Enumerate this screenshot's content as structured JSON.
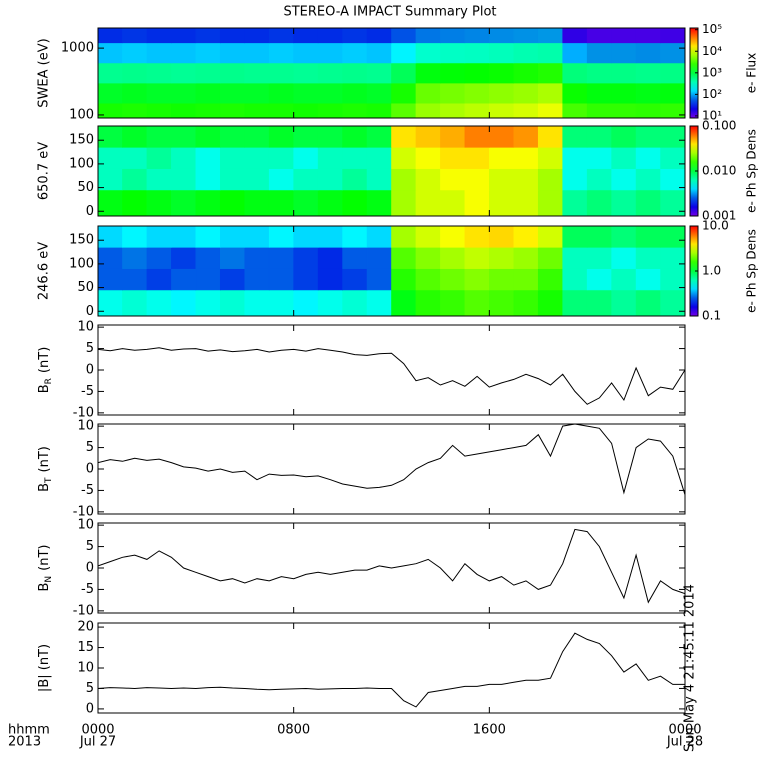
{
  "title": "STEREO-A IMPACT Summary Plot",
  "timestamp": "Sun May  4 21:45:11 2014",
  "x_axis": {
    "xlim": [
      0,
      24
    ],
    "row_labels": [
      "hhmm",
      "2013"
    ],
    "xticks": [
      {
        "value": 0,
        "label": "0000"
      },
      {
        "value": 8,
        "label": "0800"
      },
      {
        "value": 16,
        "label": "1600"
      },
      {
        "value": 24,
        "label": "0000"
      }
    ],
    "date_labels": [
      {
        "value": 0,
        "label": "Jul 27"
      },
      {
        "value": 24,
        "label": "Jul 28"
      }
    ]
  },
  "chart_data": [
    {
      "type": "heatmap",
      "ylabel": "SWEA (eV)",
      "ylog": true,
      "ylim": [
        90,
        2000
      ],
      "yticks": [
        100,
        1000
      ],
      "xbins": [
        0,
        1,
        2,
        3,
        4,
        5,
        6,
        7,
        8,
        9,
        10,
        11,
        12,
        13,
        14,
        15,
        16,
        17,
        18,
        19,
        20,
        21,
        22,
        23,
        24
      ],
      "ybins": [
        90,
        150,
        300,
        600,
        1200,
        2000
      ],
      "z": [
        [
          2000,
          2100,
          2000,
          1900,
          2000,
          2100,
          2000,
          2000,
          1900,
          2000,
          2100,
          2000,
          3500,
          6000,
          7000,
          8000,
          9000,
          10000,
          12000,
          3000,
          2500,
          2500,
          2400,
          2500
        ],
        [
          1200,
          1300,
          1200,
          1200,
          1300,
          1200,
          1200,
          1300,
          1200,
          1200,
          1300,
          1200,
          2000,
          4000,
          4500,
          5000,
          5500,
          6000,
          7000,
          1800,
          1500,
          1500,
          1400,
          1500
        ],
        [
          500,
          520,
          500,
          480,
          500,
          520,
          500,
          500,
          480,
          500,
          520,
          500,
          800,
          1500,
          1600,
          1700,
          1800,
          2000,
          2200,
          600,
          550,
          550,
          520,
          550
        ],
        [
          120,
          130,
          120,
          120,
          130,
          120,
          120,
          130,
          120,
          120,
          130,
          120,
          180,
          300,
          320,
          330,
          350,
          380,
          400,
          100,
          90,
          90,
          85,
          90
        ],
        [
          35,
          38,
          35,
          35,
          38,
          35,
          35,
          38,
          35,
          35,
          38,
          35,
          50,
          70,
          75,
          80,
          85,
          90,
          95,
          15,
          12,
          12,
          12,
          13
        ]
      ],
      "zlog": true,
      "zlim": [
        8,
        120000
      ],
      "zticks": [
        {
          "value": 10,
          "label": "10¹"
        },
        {
          "value": 100,
          "label": "10²"
        },
        {
          "value": 1000,
          "label": "10³"
        },
        {
          "value": 10000,
          "label": "10⁴"
        },
        {
          "value": 100000,
          "label": "10⁵"
        }
      ],
      "zlabel": "e- Flux"
    },
    {
      "type": "heatmap",
      "ylabel": "650.7 eV",
      "ylog": false,
      "ylim": [
        -10,
        180
      ],
      "yticks": [
        0,
        50,
        100,
        150
      ],
      "xbins": [
        0,
        1,
        2,
        3,
        4,
        5,
        6,
        7,
        8,
        9,
        10,
        11,
        12,
        13,
        14,
        15,
        16,
        17,
        18,
        19,
        20,
        21,
        22,
        23,
        24
      ],
      "ybins": [
        -10,
        45,
        90,
        135,
        180
      ],
      "z": [
        [
          0.012,
          0.013,
          0.012,
          0.011,
          0.012,
          0.013,
          0.012,
          0.012,
          0.011,
          0.012,
          0.013,
          0.012,
          0.025,
          0.03,
          0.03,
          0.035,
          0.03,
          0.03,
          0.025,
          0.007,
          0.008,
          0.007,
          0.008,
          0.007
        ],
        [
          0.006,
          0.007,
          0.006,
          0.006,
          0.005,
          0.006,
          0.006,
          0.005,
          0.006,
          0.006,
          0.007,
          0.006,
          0.025,
          0.03,
          0.035,
          0.035,
          0.03,
          0.03,
          0.025,
          0.005,
          0.006,
          0.005,
          0.006,
          0.005
        ],
        [
          0.006,
          0.006,
          0.007,
          0.006,
          0.005,
          0.006,
          0.006,
          0.006,
          0.005,
          0.006,
          0.006,
          0.006,
          0.03,
          0.035,
          0.04,
          0.04,
          0.035,
          0.035,
          0.03,
          0.005,
          0.005,
          0.006,
          0.005,
          0.006
        ],
        [
          0.01,
          0.011,
          0.01,
          0.01,
          0.011,
          0.01,
          0.01,
          0.011,
          0.01,
          0.01,
          0.011,
          0.01,
          0.04,
          0.045,
          0.05,
          0.06,
          0.06,
          0.055,
          0.04,
          0.008,
          0.008,
          0.009,
          0.008,
          0.008
        ]
      ],
      "zlog": true,
      "zlim": [
        0.001,
        0.1
      ],
      "zticks": [
        0.001,
        {
          "value": 0.01,
          "label": "0.010"
        },
        {
          "value": 0.1,
          "label": "0.100"
        }
      ],
      "zlabel": "e- Ph Sp Dens"
    },
    {
      "type": "heatmap",
      "ylabel": "246.6 eV",
      "ylog": false,
      "ylim": [
        -10,
        180
      ],
      "yticks": [
        0,
        50,
        100,
        150
      ],
      "xbins": [
        0,
        1,
        2,
        3,
        4,
        5,
        6,
        7,
        8,
        9,
        10,
        11,
        12,
        13,
        14,
        15,
        16,
        17,
        18,
        19,
        20,
        21,
        22,
        23,
        24
      ],
      "ybins": [
        -10,
        45,
        90,
        135,
        180
      ],
      "z": [
        [
          0.5,
          0.55,
          0.5,
          0.45,
          0.5,
          0.55,
          0.5,
          0.5,
          0.45,
          0.5,
          0.55,
          0.5,
          1.2,
          1.5,
          1.6,
          1.8,
          1.7,
          1.6,
          1.4,
          0.8,
          0.8,
          0.7,
          0.8,
          0.7
        ],
        [
          0.25,
          0.25,
          0.22,
          0.25,
          0.25,
          0.22,
          0.25,
          0.25,
          0.22,
          0.2,
          0.22,
          0.25,
          1.5,
          1.8,
          2,
          2.2,
          2,
          2,
          1.6,
          0.6,
          0.5,
          0.6,
          0.5,
          0.6
        ],
        [
          0.25,
          0.28,
          0.25,
          0.22,
          0.25,
          0.28,
          0.25,
          0.25,
          0.22,
          0.2,
          0.25,
          0.25,
          1.8,
          2.2,
          2.5,
          2.8,
          2.6,
          2.4,
          2,
          0.6,
          0.6,
          0.5,
          0.6,
          0.6
        ],
        [
          0.4,
          0.45,
          0.4,
          0.4,
          0.45,
          0.4,
          0.4,
          0.45,
          0.4,
          0.4,
          0.45,
          0.4,
          2.5,
          3,
          3.5,
          4,
          4.2,
          3.8,
          3,
          0.9,
          0.9,
          0.8,
          0.9,
          0.9
        ]
      ],
      "zlog": true,
      "zlim": [
        0.1,
        10
      ],
      "zticks": [
        0.1,
        {
          "value": 1,
          "label": "1.0"
        },
        {
          "value": 10,
          "label": "10.0"
        }
      ],
      "zlabel": "e- Ph Sp Dens"
    },
    {
      "type": "line",
      "ylabel": {
        "main": "B",
        "sub": "R",
        "unit": "(nT)"
      },
      "ylim": [
        -10.5,
        10.5
      ],
      "yticks": [
        -10,
        -5,
        0,
        5,
        10
      ],
      "x": [
        0,
        0.5,
        1,
        1.5,
        2,
        2.5,
        3,
        3.5,
        4,
        4.5,
        5,
        5.5,
        6,
        6.5,
        7,
        7.5,
        8,
        8.5,
        9,
        9.5,
        10,
        10.5,
        11,
        11.5,
        12,
        12.5,
        13,
        13.5,
        14,
        14.5,
        15,
        15.5,
        16,
        16.5,
        17,
        17.5,
        18,
        18.5,
        19,
        19.5,
        20,
        20.5,
        21,
        21.5,
        22,
        22.5,
        23,
        23.5,
        24
      ],
      "values": [
        4.8,
        4.5,
        5,
        4.6,
        4.8,
        5.2,
        4.6,
        4.9,
        5,
        4.4,
        4.7,
        4.3,
        4.5,
        4.8,
        4.2,
        4.6,
        4.8,
        4.4,
        5,
        4.6,
        4.2,
        3.6,
        3.4,
        3.8,
        3.9,
        1.5,
        -2.5,
        -1.8,
        -3.5,
        -2.5,
        -3.8,
        -1.5,
        -4,
        -3,
        -2.2,
        -1,
        -2,
        -3.5,
        -1,
        -5,
        -8,
        -6.5,
        -3,
        -7,
        0.5,
        -6,
        -4,
        -4.5,
        0
      ]
    },
    {
      "type": "line",
      "ylabel": {
        "main": "B",
        "sub": "T",
        "unit": "(nT)"
      },
      "ylim": [
        -10.5,
        10.5
      ],
      "yticks": [
        -10,
        -5,
        0,
        5,
        10
      ],
      "x": [
        0,
        0.5,
        1,
        1.5,
        2,
        2.5,
        3,
        3.5,
        4,
        4.5,
        5,
        5.5,
        6,
        6.5,
        7,
        7.5,
        8,
        8.5,
        9,
        9.5,
        10,
        10.5,
        11,
        11.5,
        12,
        12.5,
        13,
        13.5,
        14,
        14.5,
        15,
        15.5,
        16,
        16.5,
        17,
        17.5,
        18,
        18.5,
        19,
        19.5,
        20,
        20.5,
        21,
        21.5,
        22,
        22.5,
        23,
        23.5,
        24
      ],
      "values": [
        1.5,
        2.2,
        1.8,
        2.5,
        2,
        2.3,
        1.5,
        0.5,
        0.2,
        -0.5,
        0,
        -0.8,
        -0.5,
        -2.5,
        -1.2,
        -1.5,
        -1.4,
        -1.8,
        -1.6,
        -2.5,
        -3.5,
        -4,
        -4.5,
        -4.3,
        -3.8,
        -2.5,
        0,
        1.5,
        2.5,
        5.5,
        3,
        3.5,
        4,
        4.5,
        5,
        5.5,
        8,
        3,
        10,
        10.5,
        10,
        9.5,
        6,
        -5.5,
        5,
        7,
        6.5,
        3,
        -6
      ]
    },
    {
      "type": "line",
      "ylabel": {
        "main": "B",
        "sub": "N",
        "unit": "(nT)"
      },
      "ylim": [
        -10.5,
        10.5
      ],
      "yticks": [
        -10,
        -5,
        0,
        5,
        10
      ],
      "x": [
        0,
        0.5,
        1,
        1.5,
        2,
        2.5,
        3,
        3.5,
        4,
        4.5,
        5,
        5.5,
        6,
        6.5,
        7,
        7.5,
        8,
        8.5,
        9,
        9.5,
        10,
        10.5,
        11,
        11.5,
        12,
        12.5,
        13,
        13.5,
        14,
        14.5,
        15,
        15.5,
        16,
        16.5,
        17,
        17.5,
        18,
        18.5,
        19,
        19.5,
        20,
        20.5,
        21,
        21.5,
        22,
        22.5,
        23,
        23.5,
        24
      ],
      "values": [
        0.5,
        1.5,
        2.5,
        3,
        2,
        4,
        2.5,
        0,
        -1,
        -2,
        -3,
        -2.5,
        -3.5,
        -2.5,
        -3,
        -2,
        -2.5,
        -1.5,
        -1,
        -1.5,
        -1,
        -0.5,
        -0.5,
        0.5,
        0,
        0.5,
        1,
        2,
        0,
        -3,
        1,
        -1.5,
        -3,
        -2,
        -4,
        -3,
        -5,
        -4,
        1,
        9,
        8.5,
        5,
        -1,
        -7,
        3,
        -8,
        -3,
        -5,
        -6
      ]
    },
    {
      "type": "line",
      "ylabel": {
        "main": "|B| (nT)"
      },
      "ylim": [
        -1,
        21
      ],
      "yticks": [
        0,
        5,
        10,
        15,
        20
      ],
      "x": [
        0,
        0.5,
        1,
        1.5,
        2,
        2.5,
        3,
        3.5,
        4,
        4.5,
        5,
        5.5,
        6,
        6.5,
        7,
        7.5,
        8,
        8.5,
        9,
        9.5,
        10,
        10.5,
        11,
        11.5,
        12,
        12.5,
        13,
        13.5,
        14,
        14.5,
        15,
        15.5,
        16,
        16.5,
        17,
        17.5,
        18,
        18.5,
        19,
        19.5,
        20,
        20.5,
        21,
        21.5,
        22,
        22.5,
        23,
        23.5,
        24
      ],
      "values": [
        5,
        5.2,
        5.1,
        5,
        5.2,
        5.1,
        5,
        5.1,
        5,
        5.2,
        5.3,
        5.1,
        5,
        4.8,
        4.7,
        4.8,
        4.9,
        5,
        4.8,
        4.9,
        5,
        5,
        5.1,
        5,
        5,
        2,
        0.5,
        4,
        4.5,
        5,
        5.5,
        5.5,
        6,
        6,
        6.5,
        7,
        7,
        7.5,
        14,
        18.5,
        17,
        16,
        13,
        9,
        11,
        7,
        8,
        6,
        6
      ]
    }
  ]
}
